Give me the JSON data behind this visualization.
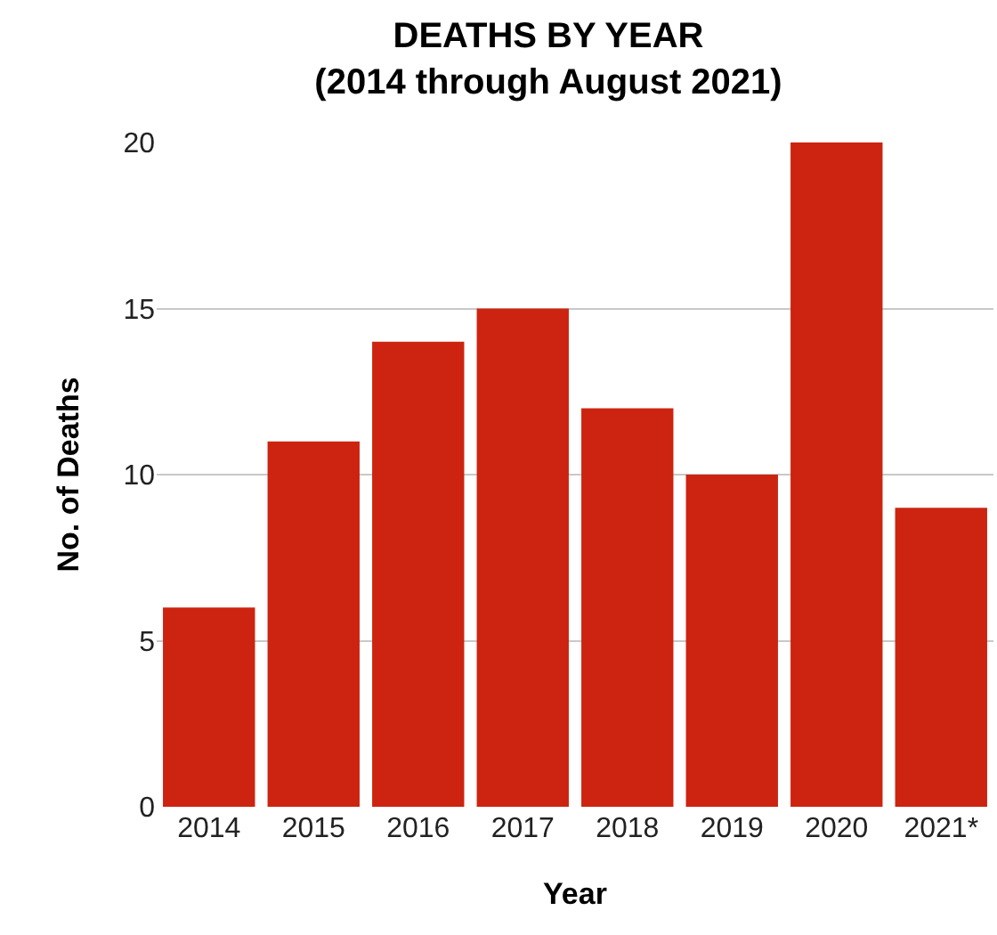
{
  "chart_data": {
    "type": "bar",
    "title": "DEATHS BY YEAR",
    "subtitle": "(2014 through August 2021)",
    "xlabel": "Year",
    "ylabel": "No. of Deaths",
    "categories": [
      "2014",
      "2015",
      "2016",
      "2017",
      "2018",
      "2019",
      "2020",
      "2021*"
    ],
    "values": [
      6,
      11,
      14,
      15,
      12,
      10,
      20,
      9
    ],
    "color": "#cc2410",
    "ylim": [
      0,
      20
    ],
    "yticks": [
      0,
      5,
      10,
      15,
      20
    ],
    "grid": "y"
  }
}
